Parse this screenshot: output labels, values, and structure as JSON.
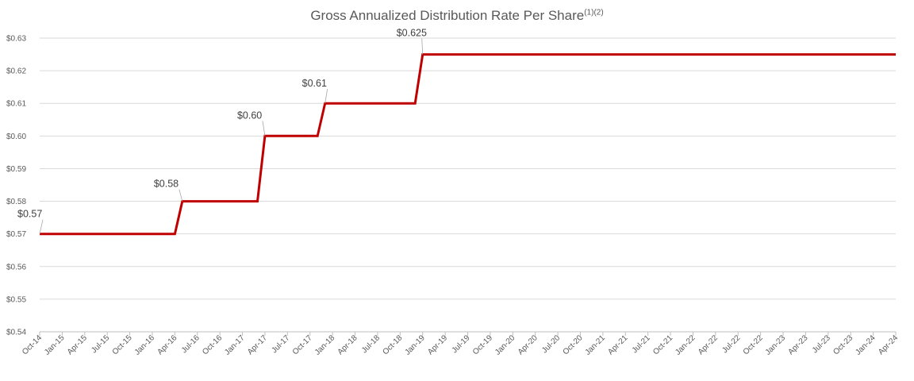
{
  "chart_data": {
    "type": "line",
    "title": "Gross Annualized Distribution Rate Per Share",
    "title_superscript": "(1)(2)",
    "xlabel": "",
    "ylabel": "",
    "ylim": [
      0.54,
      0.63
    ],
    "y_ticks": [
      0.54,
      0.55,
      0.56,
      0.57,
      0.58,
      0.59,
      0.6,
      0.61,
      0.62,
      0.63
    ],
    "y_tick_labels": [
      "$0.54",
      "$0.55",
      "$0.56",
      "$0.57",
      "$0.58",
      "$0.59",
      "$0.60",
      "$0.61",
      "$0.62",
      "$0.63"
    ],
    "x_tick_labels": [
      "Oct-14",
      "Jan-15",
      "Apr-15",
      "Jul-15",
      "Oct-15",
      "Jan-16",
      "Apr-16",
      "Jul-16",
      "Oct-16",
      "Jan-17",
      "Apr-17",
      "Jul-17",
      "Oct-17",
      "Jan-18",
      "Apr-18",
      "Jul-18",
      "Oct-18",
      "Jan-19",
      "Apr-19",
      "Jul-19",
      "Oct-19",
      "Jan-20",
      "Apr-20",
      "Jul-20",
      "Oct-20",
      "Jan-21",
      "Apr-21",
      "Jul-21",
      "Oct-21",
      "Jan-22",
      "Apr-22",
      "Jul-22",
      "Oct-22",
      "Jan-23",
      "Apr-23",
      "Jul-23",
      "Oct-23",
      "Jan-24",
      "Apr-24"
    ],
    "grid": true,
    "legend": "none",
    "series": [
      {
        "color": "#c00000",
        "points": [
          {
            "x": "Oct-14",
            "y": 0.57
          },
          {
            "x": "Apr-16",
            "y": 0.57
          },
          {
            "x": "May-16",
            "y": 0.58
          },
          {
            "x": "Mar-17",
            "y": 0.58
          },
          {
            "x": "Apr-17",
            "y": 0.6
          },
          {
            "x": "Nov-17",
            "y": 0.6
          },
          {
            "x": "Dec-17",
            "y": 0.61
          },
          {
            "x": "Dec-18",
            "y": 0.61
          },
          {
            "x": "Jan-19",
            "y": 0.625
          },
          {
            "x": "Apr-24",
            "y": 0.625
          }
        ]
      }
    ],
    "annotations": [
      {
        "text": "$0.57",
        "x": "Oct-14",
        "y": 0.57
      },
      {
        "text": "$0.58",
        "x": "May-16",
        "y": 0.58
      },
      {
        "text": "$0.60",
        "x": "Apr-17",
        "y": 0.6
      },
      {
        "text": "$0.61",
        "x": "Dec-17",
        "y": 0.61
      },
      {
        "text": "$0.625",
        "x": "Jan-19",
        "y": 0.625
      }
    ]
  }
}
